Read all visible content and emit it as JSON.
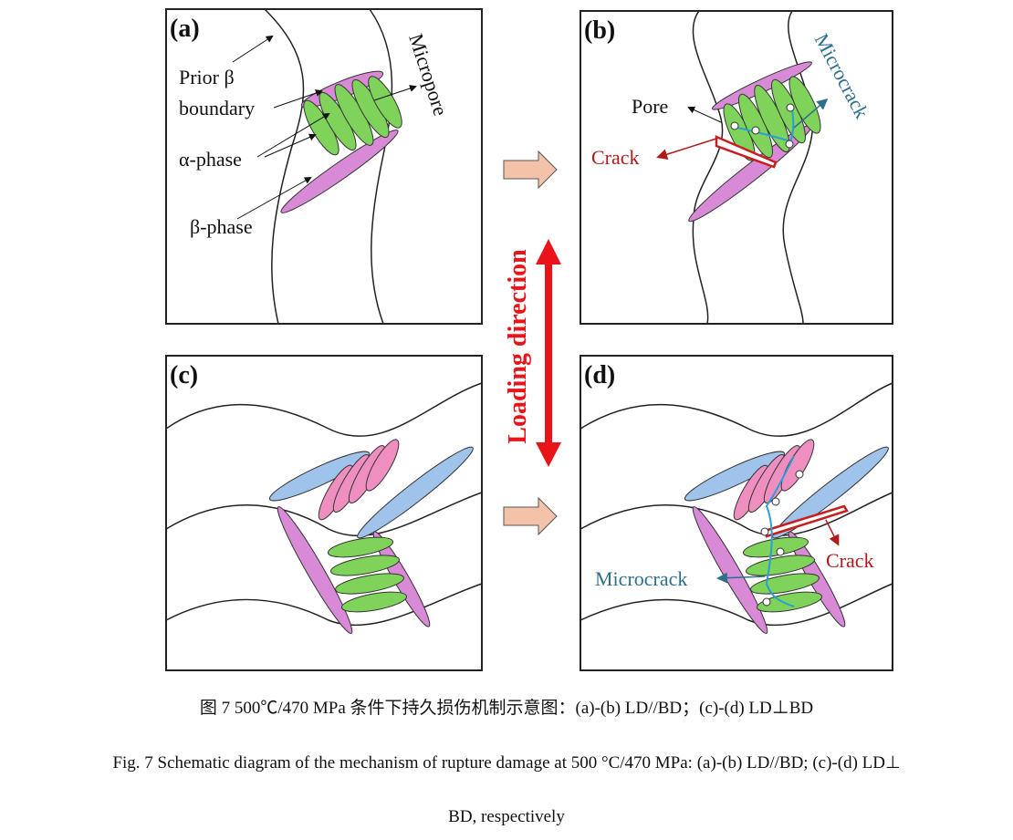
{
  "panels": {
    "a": {
      "label": "(a)",
      "prior_beta": "Prior β",
      "boundary": "boundary",
      "alpha": "α-phase",
      "beta": "β-phase",
      "micropore": "Micropore"
    },
    "b": {
      "label": "(b)",
      "pore": "Pore",
      "crack": "Crack",
      "microcrack": "Microcrack"
    },
    "c": {
      "label": "(c)"
    },
    "d": {
      "label": "(d)",
      "crack": "Crack",
      "microcrack": "Microcrack"
    }
  },
  "loading_direction": "Loading direction",
  "colors": {
    "alpha": "#7fd35a",
    "beta": "#d98ad6",
    "alpha_c": "#ee8fbf",
    "beta_c": "#9fc3ea",
    "crack": "#b01a1a",
    "microcrack": "#2e6f8e",
    "arrow_fill": "#f4c2a8",
    "loading_arrow": "#e8141a"
  },
  "caption": {
    "cn": "图 7 500℃/470 MPa 条件下持久损伤机制示意图：(a)-(b) LD//BD；(c)-(d) LD⊥BD",
    "en_line1": "Fig. 7 Schematic diagram of the mechanism of rupture damage at 500 °C/470 MPa: (a)-(b) LD//BD; (c)-(d) LD⊥",
    "en_line2": "BD, respectively"
  }
}
